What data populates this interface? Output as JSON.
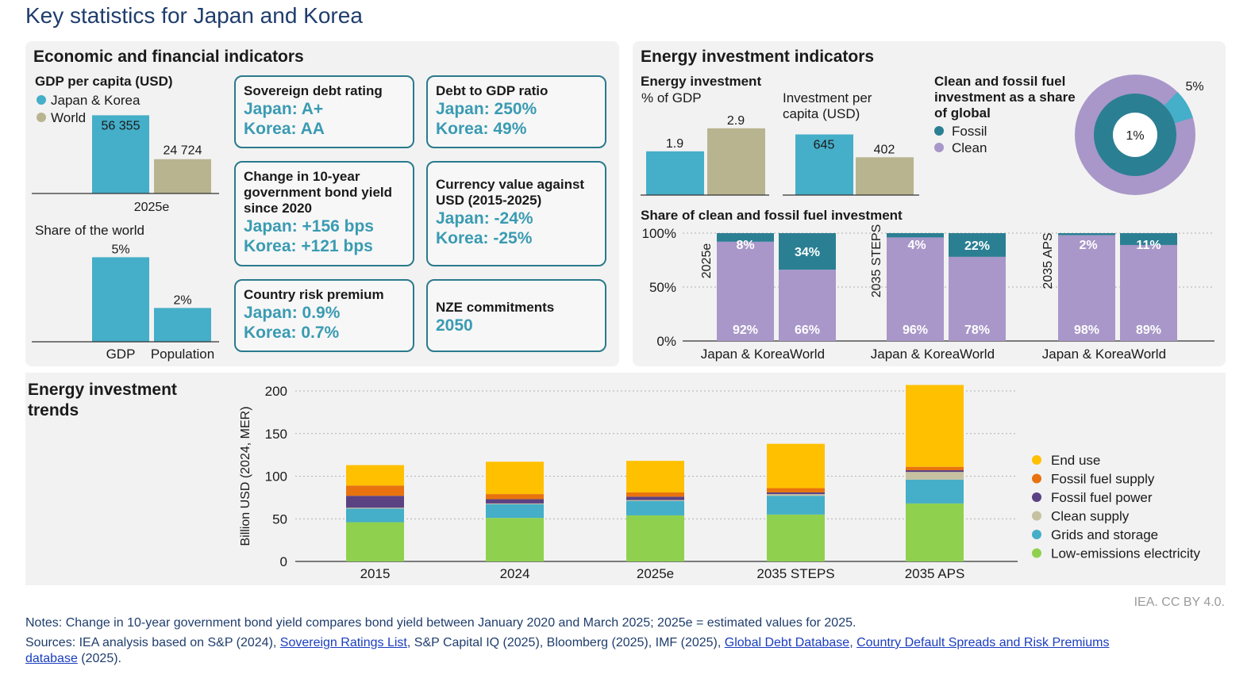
{
  "page_title": "Key statistics for Japan and Korea",
  "colors": {
    "jk": "#45aec8",
    "world": "#b8b48f",
    "fossil": "#2b7f93",
    "clean": "#a897c8",
    "accent_text": "#3a9bb2"
  },
  "econ": {
    "title": "Economic and financial indicators",
    "gdp_title": "GDP per capita (USD)",
    "legend_jk": "Japan & Korea",
    "legend_world": "World",
    "share_title": "Share of the world",
    "boxes": {
      "sov": {
        "h": "Sovereign debt rating",
        "l1": "Japan: A+",
        "l2": "Korea: AA"
      },
      "debt": {
        "h": "Debt to GDP ratio",
        "l1": "Japan: 250%",
        "l2": "Korea: 49%"
      },
      "bond": {
        "h": "Change in 10-year government bond yield since 2020",
        "l1": "Japan: +156 bps",
        "l2": "Korea: +121 bps"
      },
      "curr": {
        "h": "Currency value against USD (2015-2025)",
        "l1": "Japan: -24%",
        "l2": "Korea: -25%"
      },
      "risk": {
        "h": "Country risk premium",
        "l1": "Japan: 0.9%",
        "l2": "Korea: 0.7%"
      },
      "nze": {
        "h": "NZE commitments",
        "l1": "2050"
      }
    }
  },
  "energy": {
    "title": "Energy investment indicators",
    "inv_title_1": "Energy investment",
    "inv_title_2": "% of GDP",
    "percap_title_1": "Investment per",
    "percap_title_2": "capita (USD)",
    "donut_title_1": "Clean and fossil fuel",
    "donut_title_2": "investment as a share",
    "donut_title_3": "of global",
    "legend_fossil": "Fossil",
    "legend_clean": "Clean",
    "share_title": "Share of clean and fossil fuel investment"
  },
  "trends": {
    "title_1": "Energy investment",
    "title_2": "trends"
  },
  "credit": "IEA. CC BY 4.0.",
  "notes": {
    "notes_line": "Notes: Change in 10-year government bond yield compares bond yield between January 2020 and March 2025; 2025e = estimated values for 2025.",
    "src_prefix": "Sources: IEA analysis based on S&P (2024), ",
    "src_link1": "Sovereign Ratings List",
    "src_mid1": ", S&P Capital IQ (2025), Bloomberg (2025), IMF (2025), ",
    "src_link2": "Global Debt Database",
    "src_mid2": ", ",
    "src_link3": "Country Default Spreads and Risk Premiums",
    "src_link4": "database",
    "src_suffix": " (2025)."
  },
  "chart_data": [
    {
      "id": "gdp_per_capita",
      "type": "bar",
      "title": "GDP per capita (USD)",
      "categories": [
        "2025e"
      ],
      "series": [
        {
          "name": "Japan & Korea",
          "values": [
            56355
          ],
          "labels": [
            "56 355"
          ]
        },
        {
          "name": "World",
          "values": [
            24724
          ],
          "labels": [
            "24 724"
          ]
        }
      ],
      "ylim": [
        0,
        60000
      ]
    },
    {
      "id": "share_world",
      "type": "bar",
      "title": "Share of the world",
      "categories": [
        "GDP",
        "Population"
      ],
      "values": [
        5,
        2
      ],
      "labels": [
        "5%",
        "2%"
      ],
      "ylim": [
        0,
        5.3
      ]
    },
    {
      "id": "energy_inv_gdp",
      "type": "bar",
      "title": "Energy investment % of GDP",
      "categories": [
        "Japan & Korea",
        "World"
      ],
      "values": [
        1.9,
        2.9
      ],
      "labels": [
        "1.9",
        "2.9"
      ],
      "ylim": [
        0,
        3.1
      ]
    },
    {
      "id": "inv_per_capita",
      "type": "bar",
      "title": "Investment per capita (USD)",
      "categories": [
        "Japan & Korea",
        "World"
      ],
      "values": [
        645,
        402
      ],
      "labels": [
        "645",
        "402"
      ],
      "ylim": [
        0,
        700
      ]
    },
    {
      "id": "global_share",
      "type": "pie",
      "title": "Clean and fossil fuel investment as a share of global",
      "rings": [
        {
          "name": "Clean",
          "ring": "outer",
          "value": 5,
          "label": "5%"
        },
        {
          "name": "Fossil",
          "ring": "inner",
          "value": 1,
          "label": "1%"
        }
      ]
    },
    {
      "id": "clean_fossil_share",
      "type": "bar",
      "stacked": true,
      "title": "Share of clean and fossil fuel investment",
      "yticks": [
        "0%",
        "50%",
        "100%"
      ],
      "ylim": [
        0,
        100
      ],
      "groups": [
        {
          "name": "2025e",
          "bars": [
            {
              "cat": "Japan & Korea",
              "clean": 92,
              "fossil": 8,
              "clean_label": "92%",
              "fossil_label": "8%"
            },
            {
              "cat": "World",
              "clean": 66,
              "fossil": 34,
              "clean_label": "66%",
              "fossil_label": "34%"
            }
          ]
        },
        {
          "name": "2035 STEPS",
          "bars": [
            {
              "cat": "Japan & Korea",
              "clean": 96,
              "fossil": 4,
              "clean_label": "96%",
              "fossil_label": "4%"
            },
            {
              "cat": "World",
              "clean": 78,
              "fossil": 22,
              "clean_label": "78%",
              "fossil_label": "22%"
            }
          ]
        },
        {
          "name": "2035 APS",
          "bars": [
            {
              "cat": "Japan & Korea",
              "clean": 98,
              "fossil": 2,
              "clean_label": "98%",
              "fossil_label": "2%"
            },
            {
              "cat": "World",
              "clean": 89,
              "fossil": 11,
              "clean_label": "89%",
              "fossil_label": "11%"
            }
          ]
        }
      ]
    },
    {
      "id": "investment_trends",
      "type": "bar",
      "stacked": true,
      "title": "Energy investment trends",
      "ylabel": "Billion USD (2024, MER)",
      "ylim": [
        0,
        200
      ],
      "yticks": [
        0,
        50,
        100,
        150,
        200
      ],
      "categories": [
        "2015",
        "2024",
        "2025e",
        "2035 STEPS",
        "2035 APS"
      ],
      "series": [
        {
          "name": "Low-emissions electricity",
          "color": "#8fd14f",
          "values": [
            46,
            51,
            54,
            55,
            68
          ]
        },
        {
          "name": "Grids and storage",
          "color": "#45aec8",
          "values": [
            16,
            16,
            17,
            22,
            28
          ]
        },
        {
          "name": "Clean supply",
          "color": "#c6c1a0",
          "values": [
            1,
            1,
            1,
            2,
            9
          ]
        },
        {
          "name": "Fossil fuel power",
          "color": "#5b4283",
          "values": [
            14,
            5,
            4,
            2,
            2
          ]
        },
        {
          "name": "Fossil fuel supply",
          "color": "#e8730e",
          "values": [
            12,
            6,
            5,
            5,
            4
          ]
        },
        {
          "name": "End use",
          "color": "#ffc000",
          "values": [
            24,
            38,
            37,
            52,
            96
          ]
        }
      ],
      "legend_order": [
        "End use",
        "Fossil fuel supply",
        "Fossil fuel power",
        "Clean supply",
        "Grids and storage",
        "Low-emissions electricity"
      ]
    }
  ]
}
